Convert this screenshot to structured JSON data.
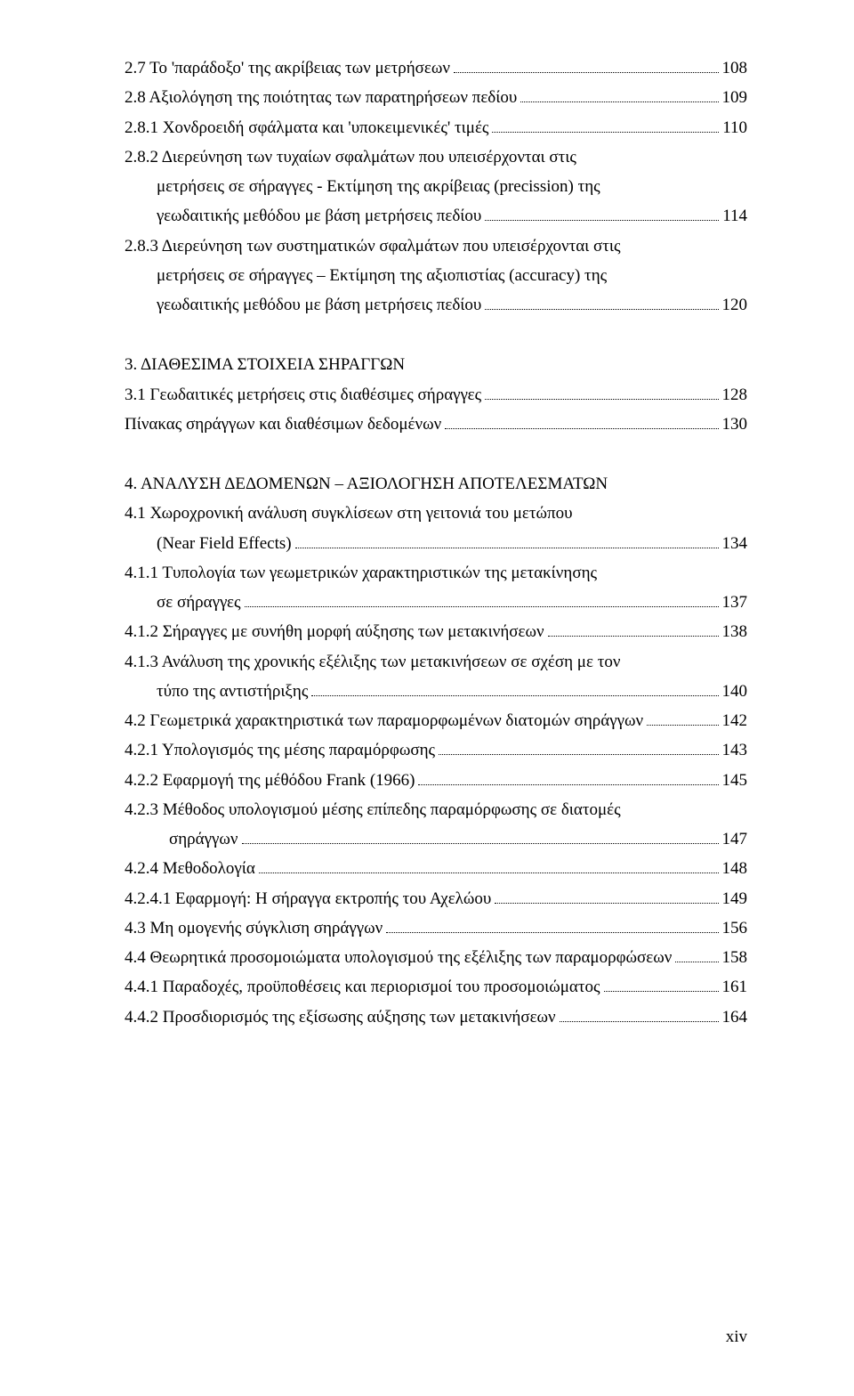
{
  "lines": [
    {
      "text": "2.7 Το 'παράδοξο' της ακρίβειας των μετρήσεων",
      "page": "108",
      "indent": 0
    },
    {
      "text": "2.8 Αξιολόγηση της ποιότητας των παρατηρήσεων πεδίου",
      "page": "109",
      "indent": 0
    },
    {
      "text": "2.8.1 Χονδροειδή σφάλματα και 'υποκειμενικές' τιμές",
      "page": "110",
      "indent": 0
    },
    {
      "text": "2.8.2 Διερεύνηση των τυχαίων σφαλμάτων που υπεισέρχονται στις",
      "page": "",
      "indent": 0,
      "nodots": true
    },
    {
      "text": "μετρήσεις σε σήραγγες - Εκτίμηση της ακρίβειας (precission) της",
      "page": "",
      "indent": 1,
      "nodots": true
    },
    {
      "text": "γεωδαιτικής μεθόδου με βάση μετρήσεις πεδίου",
      "page": "114",
      "indent": 1
    },
    {
      "text": "2.8.3 Διερεύνηση των συστηματικών σφαλμάτων που υπεισέρχονται στις",
      "page": "",
      "indent": 0,
      "nodots": true
    },
    {
      "text": "μετρήσεις σε σήραγγες – Εκτίμηση της αξιοπιστίας (accuracy) της",
      "page": "",
      "indent": 1,
      "nodots": true
    },
    {
      "text": "γεωδαιτικής μεθόδου με βάση μετρήσεις πεδίου",
      "page": "120",
      "indent": 1
    },
    {
      "gap": true
    },
    {
      "text": "3. ΔΙΑΘΕΣΙΜΑ ΣΤΟΙΧΕΙΑ ΣΗΡΑΓΓΩΝ",
      "page": "",
      "indent": 0,
      "nodots": true
    },
    {
      "text": "3.1 Γεωδαιτικές μετρήσεις στις διαθέσιμες σήραγγες",
      "page": "128",
      "indent": 0
    },
    {
      "text": "Πίνακας σηράγγων και διαθέσιμων δεδομένων",
      "page": "130",
      "indent": 0
    },
    {
      "gap": true
    },
    {
      "text": "4. ΑΝΑΛΥΣΗ ΔΕΔΟΜΕΝΩΝ – ΑΞΙΟΛΟΓΗΣΗ ΑΠΟΤΕΛΕΣΜΑΤΩΝ",
      "page": "",
      "indent": 0,
      "nodots": true
    },
    {
      "text": "4.1 Χωροχρονική ανάλυση συγκλίσεων στη γειτονιά του μετώπου",
      "page": "",
      "indent": 0,
      "nodots": true
    },
    {
      "text": " (Near Field Effects)",
      "page": "134",
      "indent": 1
    },
    {
      "text": "4.1.1 Τυπολογία των γεωμετρικών χαρακτηριστικών της μετακίνησης",
      "page": "",
      "indent": 0,
      "nodots": true
    },
    {
      "text": "σε σήραγγες",
      "page": "137",
      "indent": 1
    },
    {
      "text": "4.1.2 Σήραγγες με συνήθη μορφή αύξησης των μετακινήσεων",
      "page": "138",
      "indent": 0
    },
    {
      "text": "4.1.3 Ανάλυση της χρονικής εξέλιξης των μετακινήσεων σε σχέση με τον",
      "page": "",
      "indent": 0,
      "nodots": true
    },
    {
      "text": " τύπο της αντιστήριξης",
      "page": "140",
      "indent": 1
    },
    {
      "text": "4.2 Γεωμετρικά χαρακτηριστικά των παραμορφωμένων διατομών σηράγγων",
      "page": "142",
      "indent": 0
    },
    {
      "text": "4.2.1 Υπολογισμός της μέσης παραμόρφωσης",
      "page": "143",
      "indent": 0
    },
    {
      "text": "4.2.2 Εφαρμογή της μέθόδου Frank (1966)",
      "page": "145",
      "indent": 0
    },
    {
      "text": "4.2.3 Μέθοδος υπολογισμού μέσης επίπεδης παραμόρφωσης σε διατομές",
      "page": "",
      "indent": 0,
      "nodots": true
    },
    {
      "text": "σηράγγων",
      "page": "147",
      "indent": 2
    },
    {
      "text": "4.2.4 Μεθοδολογία",
      "page": "148",
      "indent": 0
    },
    {
      "text": "4.2.4.1 Εφαρμογή: Η σήραγγα εκτροπής του Αχελώου",
      "page": "149",
      "indent": 0
    },
    {
      "text": "4.3 Μη ομογενής σύγκλιση σηράγγων",
      "page": "156",
      "indent": 0
    },
    {
      "text": "4.4 Θεωρητικά προσομοιώματα υπολογισμού της εξέλιξης των παραμορφώσεων",
      "page": "158",
      "indent": 0
    },
    {
      "text": "4.4.1 Παραδοχές, προϋποθέσεις και περιορισμοί του προσομοιώματος",
      "page": "161",
      "indent": 0
    },
    {
      "text": "4.4.2 Προσδιορισμός της εξίσωσης αύξησης των μετακινήσεων",
      "page": "164",
      "indent": 0
    }
  ],
  "page_number": "xiv"
}
